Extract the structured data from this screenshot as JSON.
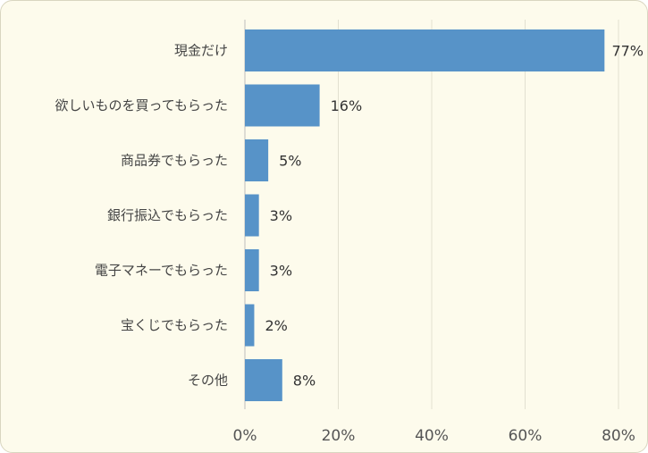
{
  "chart_data": {
    "type": "bar",
    "orientation": "horizontal",
    "categories": [
      "現金だけ",
      "欲しいものを買ってもらった",
      "商品券でもらった",
      "銀行振込でもらった",
      "電子マネーでもらった",
      "宝くじでもらった",
      "その他"
    ],
    "values": [
      77,
      16,
      5,
      3,
      3,
      2,
      8
    ],
    "value_labels": [
      "77%",
      "16%",
      "5%",
      "3%",
      "3%",
      "2%",
      "8%"
    ],
    "xlim": [
      0,
      80
    ],
    "xticks": [
      0,
      20,
      40,
      60,
      80
    ],
    "xtick_labels": [
      "0%",
      "20%",
      "40%",
      "60%",
      "80%"
    ],
    "grid": "vertical",
    "bar_color": "#5793c8",
    "background_color": "#fdfbec"
  }
}
